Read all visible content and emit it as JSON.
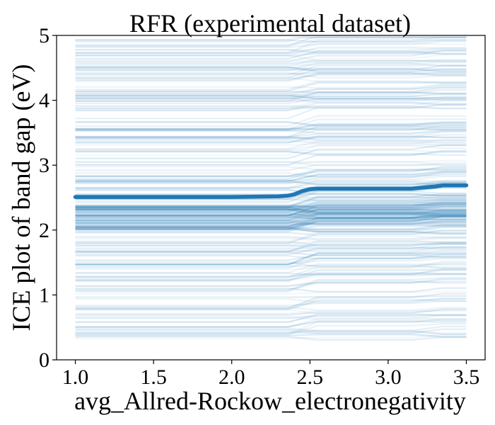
{
  "chart_data": {
    "type": "line",
    "title": "RFR (experimental dataset)",
    "xlabel": "avg_Allred-Rockow_electronegativity",
    "ylabel": "ICE plot of band gap (eV)",
    "xlim": [
      0.88,
      3.62
    ],
    "ylim": [
      0,
      5
    ],
    "x_ticks": [
      1.0,
      1.5,
      2.0,
      2.5,
      3.0,
      3.5
    ],
    "x_tick_labels": [
      "1.0",
      "1.5",
      "2.0",
      "2.5",
      "3.0",
      "3.5"
    ],
    "y_ticks": [
      0,
      1,
      2,
      3,
      4,
      5
    ],
    "y_tick_labels": [
      "0",
      "1",
      "2",
      "3",
      "4",
      "5"
    ],
    "grid": false,
    "legend": "none",
    "colors": {
      "ice_lines": "#1f77b4",
      "average": "#1f77b4"
    },
    "ice_x": [
      1.0,
      1.5,
      2.0,
      2.3,
      2.36,
      2.4,
      2.45,
      2.5,
      2.55,
      3.0,
      3.15,
      3.25,
      3.3,
      3.35,
      3.5
    ],
    "ice_line_count": 300,
    "ice_baseline_range": [
      0.3,
      4.95
    ],
    "ice_step_delta_at_2_4": 0.12,
    "ice_step_delta_at_3_25": 0.05,
    "average_series": {
      "x": [
        1.0,
        1.5,
        2.0,
        2.3,
        2.36,
        2.4,
        2.45,
        2.5,
        2.55,
        3.0,
        3.15,
        3.25,
        3.3,
        3.35,
        3.5
      ],
      "y": [
        2.51,
        2.51,
        2.51,
        2.52,
        2.53,
        2.55,
        2.6,
        2.63,
        2.64,
        2.64,
        2.64,
        2.66,
        2.67,
        2.69,
        2.69
      ]
    }
  }
}
